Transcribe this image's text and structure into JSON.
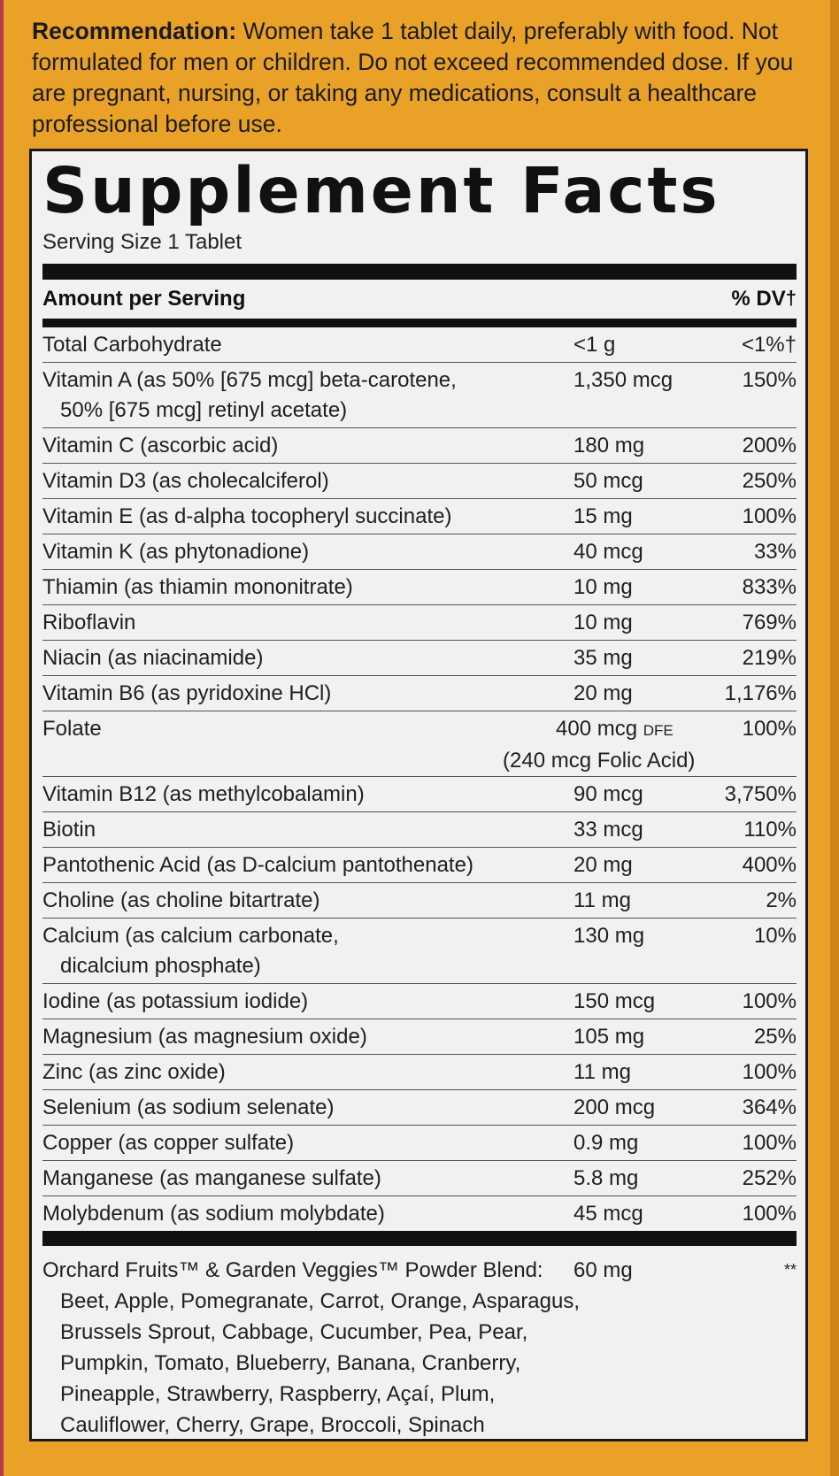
{
  "recommendation": {
    "label": "Recommendation:",
    "text": " Women take 1 tablet daily, preferably with food. Not formulated for men or children. Do not exceed recommended dose. If you are pregnant, nursing, or taking any medications, consult a healthcare professional before use."
  },
  "facts": {
    "title": "Supplement Facts",
    "serving_size": "Serving Size 1 Tablet",
    "amount_header": "Amount per Serving",
    "dv_header": "% DV",
    "dagger": "†",
    "rows": [
      {
        "name": "Total Carbohydrate",
        "name2": "",
        "amount": "<1 g",
        "amount_unit": "",
        "amount2": "",
        "dv": "<1%†"
      },
      {
        "name": "Vitamin A (as 50% [675 mcg] beta-carotene,",
        "name2": "50% [675 mcg] retinyl acetate)",
        "amount": "1,350 mcg",
        "amount_unit": "",
        "amount2": "",
        "dv": "150%"
      },
      {
        "name": "Vitamin C (ascorbic acid)",
        "name2": "",
        "amount": "180 mg",
        "amount_unit": "",
        "amount2": "",
        "dv": "200%"
      },
      {
        "name": "Vitamin D3 (as cholecalciferol)",
        "name2": "",
        "amount": "50 mcg",
        "amount_unit": "",
        "amount2": "",
        "dv": "250%"
      },
      {
        "name": "Vitamin E (as d-alpha tocopheryl succinate)",
        "name2": "",
        "amount": "15 mg",
        "amount_unit": "",
        "amount2": "",
        "dv": "100%"
      },
      {
        "name": "Vitamin K (as phytonadione)",
        "name2": "",
        "amount": "40 mcg",
        "amount_unit": "",
        "amount2": "",
        "dv": "33%"
      },
      {
        "name": "Thiamin (as thiamin mononitrate)",
        "name2": "",
        "amount": "10 mg",
        "amount_unit": "",
        "amount2": "",
        "dv": "833%"
      },
      {
        "name": "Riboflavin",
        "name2": "",
        "amount": "10 mg",
        "amount_unit": "",
        "amount2": "",
        "dv": "769%"
      },
      {
        "name": "Niacin (as niacinamide)",
        "name2": "",
        "amount": "35 mg",
        "amount_unit": "",
        "amount2": "",
        "dv": "219%"
      },
      {
        "name": "Vitamin B6 (as pyridoxine HCl)",
        "name2": "",
        "amount": "20 mg",
        "amount_unit": "",
        "amount2": "",
        "dv": "1,176%"
      },
      {
        "name": "Folate",
        "name2": "",
        "amount": "400 mcg ",
        "amount_unit": "DFE",
        "amount2": "(240 mcg Folic Acid)",
        "dv": "100%"
      },
      {
        "name": "Vitamin B12 (as methylcobalamin)",
        "name2": "",
        "amount": "90 mcg",
        "amount_unit": "",
        "amount2": "",
        "dv": "3,750%"
      },
      {
        "name": "Biotin",
        "name2": "",
        "amount": "33 mcg",
        "amount_unit": "",
        "amount2": "",
        "dv": "110%"
      },
      {
        "name": "Pantothenic Acid (as D-calcium pantothenate)",
        "name2": "",
        "amount": "20 mg",
        "amount_unit": "",
        "amount2": "",
        "dv": "400%"
      },
      {
        "name": "Choline (as choline bitartrate)",
        "name2": "",
        "amount": "11 mg",
        "amount_unit": "",
        "amount2": "",
        "dv": "2%"
      },
      {
        "name": "Calcium (as calcium carbonate,",
        "name2": "dicalcium phosphate)",
        "amount": "130 mg",
        "amount_unit": "",
        "amount2": "",
        "dv": "10%"
      },
      {
        "name": "Iodine (as potassium iodide)",
        "name2": "",
        "amount": "150 mcg",
        "amount_unit": "",
        "amount2": "",
        "dv": "100%"
      },
      {
        "name": "Magnesium (as magnesium oxide)",
        "name2": "",
        "amount": "105 mg",
        "amount_unit": "",
        "amount2": "",
        "dv": "25%"
      },
      {
        "name": "Zinc (as zinc oxide)",
        "name2": "",
        "amount": "11 mg",
        "amount_unit": "",
        "amount2": "",
        "dv": "100%"
      },
      {
        "name": "Selenium (as sodium selenate)",
        "name2": "",
        "amount": "200 mcg",
        "amount_unit": "",
        "amount2": "",
        "dv": "364%"
      },
      {
        "name": "Copper (as copper sulfate)",
        "name2": "",
        "amount": "0.9 mg",
        "amount_unit": "",
        "amount2": "",
        "dv": "100%"
      },
      {
        "name": "Manganese (as manganese sulfate)",
        "name2": "",
        "amount": "5.8 mg",
        "amount_unit": "",
        "amount2": "",
        "dv": "252%"
      },
      {
        "name": "Molybdenum (as sodium molybdate)",
        "name2": "",
        "amount": "45 mcg",
        "amount_unit": "",
        "amount2": "",
        "dv": "100%"
      }
    ],
    "blend": {
      "name": "Orchard Fruits™ & Garden Veggies™ Powder Blend:",
      "ingredients": "Beet, Apple, Pomegranate, Carrot, Orange, Asparagus, Brussels Sprout, Cabbage, Cucumber, Pea, Pear, Pumpkin, Tomato, Blueberry, Banana, Cranberry, Pineapple, Strawberry, Raspberry, Açaí, Plum, Cauliflower, Cherry, Grape, Broccoli, Spinach",
      "amount": "60 mg",
      "dv": "**"
    }
  }
}
